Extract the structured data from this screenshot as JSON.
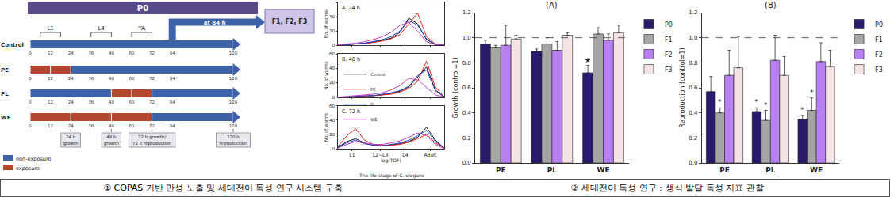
{
  "diagram": {
    "banner": "P0",
    "next_generation": "F1, F2, F3",
    "transfer": {
      "label": "at 84 h",
      "hour": 84
    },
    "stages": [
      {
        "label": "L1",
        "from": 6,
        "to": 18
      },
      {
        "label": "L4",
        "from": 36,
        "to": 48
      },
      {
        "label": "YA",
        "from": 60,
        "to": 72
      }
    ],
    "hours": [
      0,
      12,
      24,
      36,
      48,
      60,
      72,
      84,
      120
    ],
    "rows": [
      {
        "label": "Control",
        "segments": [
          {
            "from": 0,
            "to": 120,
            "exposure": false
          }
        ]
      },
      {
        "label": "PE",
        "segments": [
          {
            "from": 0,
            "to": 12,
            "exposure": true
          },
          {
            "from": 12,
            "to": 24,
            "exposure": true
          },
          {
            "from": 24,
            "to": 120,
            "exposure": false
          }
        ]
      },
      {
        "label": "PL",
        "segments": [
          {
            "from": 0,
            "to": 48,
            "exposure": false
          },
          {
            "from": 48,
            "to": 60,
            "exposure": true
          },
          {
            "from": 60,
            "to": 72,
            "exposure": true
          },
          {
            "from": 72,
            "to": 120,
            "exposure": false
          }
        ]
      },
      {
        "label": "WE",
        "segments": [
          {
            "from": 0,
            "to": 24,
            "exposure": true
          },
          {
            "from": 24,
            "to": 48,
            "exposure": true
          },
          {
            "from": 48,
            "to": 72,
            "exposure": true
          },
          {
            "from": 72,
            "to": 120,
            "exposure": false
          }
        ]
      }
    ],
    "checkpoints": [
      {
        "hour": 24,
        "lines": [
          "24 h",
          "growth"
        ]
      },
      {
        "hour": 48,
        "lines": [
          "48 h",
          "growth"
        ]
      },
      {
        "hour": 72,
        "lines": [
          "72 h growth/",
          "72 h reproduction"
        ]
      },
      {
        "hour": 120,
        "lines": [
          "120 h",
          "reproduction"
        ]
      }
    ],
    "key": [
      {
        "label": "non-exposure",
        "color": "#3d62a8"
      },
      {
        "label": "exposure",
        "color": "#b5462f"
      }
    ]
  },
  "chart_data": [
    {
      "type": "line",
      "title": "A. 24 h",
      "y_label": "No. of worms",
      "x": [
        1.0,
        1.25,
        1.5,
        1.75,
        2.0,
        2.25,
        2.5,
        2.75,
        3.0,
        3.25,
        3.5,
        3.75,
        4.0
      ],
      "series": [
        {
          "name": "Control",
          "color": "#111111",
          "values": [
            0,
            1,
            2,
            3,
            5,
            7,
            10,
            18,
            38,
            30,
            8,
            1,
            0
          ]
        },
        {
          "name": "PE",
          "color": "#e0201b",
          "values": [
            0,
            1,
            2,
            2,
            4,
            6,
            9,
            15,
            30,
            45,
            12,
            2,
            0
          ]
        },
        {
          "name": "PL",
          "color": "#2040d0",
          "values": [
            0,
            1,
            2,
            3,
            5,
            8,
            12,
            20,
            35,
            28,
            9,
            1,
            0
          ]
        },
        {
          "name": "WE",
          "color": "#c040b8",
          "values": [
            0,
            2,
            3,
            5,
            8,
            12,
            18,
            28,
            32,
            20,
            5,
            1,
            0
          ]
        }
      ],
      "xlim": [
        1,
        4
      ],
      "xticks": [
        {
          "value": 1.4,
          "label": "L1"
        },
        {
          "value": 2.2,
          "label": "L2~L3"
        },
        {
          "value": 2.9,
          "label": "L4"
        },
        {
          "value": 3.6,
          "label": "Adult"
        }
      ],
      "ylim": [
        0,
        60
      ],
      "yticks": [
        0,
        20,
        40,
        60
      ],
      "grid": false,
      "tick_labels": "y"
    },
    {
      "type": "line",
      "title": "B. 48 h",
      "y_label": "No. of worms",
      "x": [
        1.0,
        1.25,
        1.5,
        1.75,
        2.0,
        2.25,
        2.5,
        2.75,
        3.0,
        3.25,
        3.5,
        3.75,
        4.0
      ],
      "series": [
        {
          "name": "Control",
          "color": "#111111",
          "values": [
            0,
            0,
            1,
            1,
            2,
            3,
            5,
            8,
            14,
            28,
            42,
            10,
            0
          ]
        },
        {
          "name": "PE",
          "color": "#e0201b",
          "values": [
            0,
            0,
            1,
            1,
            2,
            3,
            4,
            7,
            12,
            22,
            50,
            14,
            0
          ]
        },
        {
          "name": "PL",
          "color": "#2040d0",
          "values": [
            0,
            0,
            1,
            2,
            2,
            4,
            6,
            9,
            15,
            30,
            38,
            9,
            0
          ]
        },
        {
          "name": "WE",
          "color": "#c040b8",
          "values": [
            0,
            1,
            2,
            3,
            4,
            6,
            10,
            16,
            26,
            24,
            14,
            3,
            0
          ]
        }
      ],
      "xlim": [
        1,
        4
      ],
      "xticks": [
        {
          "value": 1.4,
          "label": "L1"
        },
        {
          "value": 2.2,
          "label": "L2~L3"
        },
        {
          "value": 2.9,
          "label": "L4"
        },
        {
          "value": 3.6,
          "label": "Adult"
        }
      ],
      "ylim": [
        0,
        60
      ],
      "yticks": [
        0,
        20,
        40,
        60
      ],
      "grid": false,
      "tick_labels": "y",
      "legend": "left"
    },
    {
      "type": "line",
      "title": "C. 72 h",
      "y_label": "No. of worms",
      "x_label": "log(TOF)",
      "note": "The life stage of C. elegans",
      "x": [
        1.0,
        1.25,
        1.5,
        1.75,
        2.0,
        2.25,
        2.5,
        2.75,
        3.0,
        3.25,
        3.5,
        3.75,
        4.0
      ],
      "series": [
        {
          "name": "Control",
          "color": "#111111",
          "values": [
            2,
            10,
            14,
            8,
            5,
            4,
            5,
            7,
            10,
            16,
            30,
            12,
            1
          ]
        },
        {
          "name": "PE",
          "color": "#e0201b",
          "values": [
            3,
            18,
            28,
            12,
            6,
            5,
            5,
            6,
            9,
            14,
            20,
            8,
            1
          ]
        },
        {
          "name": "PL",
          "color": "#2040d0",
          "values": [
            2,
            8,
            12,
            7,
            5,
            4,
            6,
            8,
            12,
            18,
            26,
            10,
            1
          ]
        },
        {
          "name": "WE",
          "color": "#c040b8",
          "values": [
            1,
            6,
            10,
            8,
            6,
            6,
            8,
            11,
            16,
            22,
            18,
            6,
            0
          ]
        }
      ],
      "xlim": [
        1,
        4
      ],
      "xticks": [
        {
          "value": 1.4,
          "label": "L1"
        },
        {
          "value": 2.2,
          "label": "L2~L3"
        },
        {
          "value": 2.9,
          "label": "L4"
        },
        {
          "value": 3.6,
          "label": "Adult"
        }
      ],
      "ylim": [
        0,
        60
      ],
      "yticks": [
        0,
        20,
        40,
        60
      ],
      "grid": false,
      "tick_labels": true
    },
    {
      "type": "bar",
      "title": "(A)",
      "y_label": "Growth (control=1)",
      "categories": [
        "PE",
        "PL",
        "WE"
      ],
      "series": [
        {
          "name": "P0",
          "color": "#2b1a6b",
          "values": [
            0.95,
            0.89,
            0.72
          ],
          "errors": [
            0.03,
            0.02,
            0.06
          ]
        },
        {
          "name": "F1",
          "color": "#a5a5a5",
          "values": [
            0.92,
            0.95,
            1.03
          ],
          "errors": [
            0.02,
            0.05,
            0.05
          ]
        },
        {
          "name": "F2",
          "color": "#b77ff0",
          "values": [
            0.94,
            0.9,
            0.98
          ],
          "errors": [
            0.16,
            0.07,
            0.05
          ]
        },
        {
          "name": "F3",
          "color": "#f5e3e5",
          "values": [
            0.99,
            1.02,
            1.04
          ],
          "errors": [
            0.03,
            0.02,
            0.06
          ]
        }
      ],
      "ylim": [
        0,
        1.2
      ],
      "yticks": [
        {
          "value": 0,
          "label": "0.0"
        },
        0.2,
        0.4,
        0.6,
        0.8,
        {
          "value": 1,
          "label": "1.0"
        },
        1.2
      ],
      "reference": 1,
      "grid": false,
      "legend": "right",
      "significance": [
        {
          "category": "WE",
          "series": "P0",
          "text": "★"
        }
      ]
    },
    {
      "type": "bar",
      "title": "(B)",
      "y_label": "Reproduction (control=1)",
      "categories": [
        "PE",
        "PL",
        "WE"
      ],
      "series": [
        {
          "name": "P0",
          "color": "#2b1a6b",
          "values": [
            0.57,
            0.41,
            0.35
          ],
          "errors": [
            0.12,
            0.03,
            0.03
          ]
        },
        {
          "name": "F1",
          "color": "#a5a5a5",
          "values": [
            0.4,
            0.34,
            0.42
          ],
          "errors": [
            0.04,
            0.08,
            0.1
          ]
        },
        {
          "name": "F2",
          "color": "#b77ff0",
          "values": [
            0.7,
            0.82,
            0.81
          ],
          "errors": [
            0.2,
            0.2,
            0.15
          ]
        },
        {
          "name": "F3",
          "color": "#f5e3e5",
          "values": [
            0.76,
            0.7,
            0.77
          ],
          "errors": [
            0.25,
            0.15,
            0.13
          ]
        }
      ],
      "ylim": [
        0,
        1.2
      ],
      "yticks": [
        {
          "value": 0,
          "label": "0.0"
        },
        0.2,
        0.4,
        0.6,
        0.8,
        {
          "value": 1,
          "label": "1.0"
        },
        1.2
      ],
      "reference": 1,
      "grid": false,
      "legend": "right",
      "significance": [
        {
          "category": "PE",
          "series": "F1",
          "text": "*"
        },
        {
          "category": "PL",
          "series": "P0",
          "text": "*"
        },
        {
          "category": "PL",
          "series": "F1",
          "text": "*"
        },
        {
          "category": "WE",
          "series": "P0",
          "text": "*"
        },
        {
          "category": "WE",
          "series": "F1",
          "text": "*"
        }
      ]
    }
  ],
  "captions": [
    "① COPAS 기반 만성 노출 및 세대전이 독성 연구 시스템 구축",
    "② 세대전이 독성 연구 : 생식 발달 독성 지표 관찰"
  ]
}
